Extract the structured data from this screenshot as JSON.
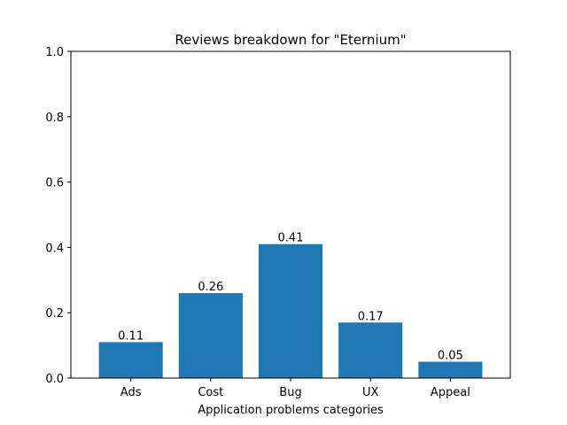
{
  "chart_data": {
    "type": "bar",
    "title": "Reviews breakdown for \"Eternium\"",
    "xlabel": "Application problems categories",
    "ylabel": "",
    "categories": [
      "Ads",
      "Cost",
      "Bug",
      "UX",
      "Appeal"
    ],
    "values": [
      0.11,
      0.26,
      0.41,
      0.17,
      0.05
    ],
    "value_labels": [
      "0.11",
      "0.26",
      "0.41",
      "0.17",
      "0.05"
    ],
    "ylim": [
      0,
      1.0
    ],
    "yticks": [
      "0.0",
      "0.2",
      "0.4",
      "0.6",
      "0.8",
      "1.0"
    ],
    "grid": false,
    "bar_color": "#1f77b4"
  }
}
